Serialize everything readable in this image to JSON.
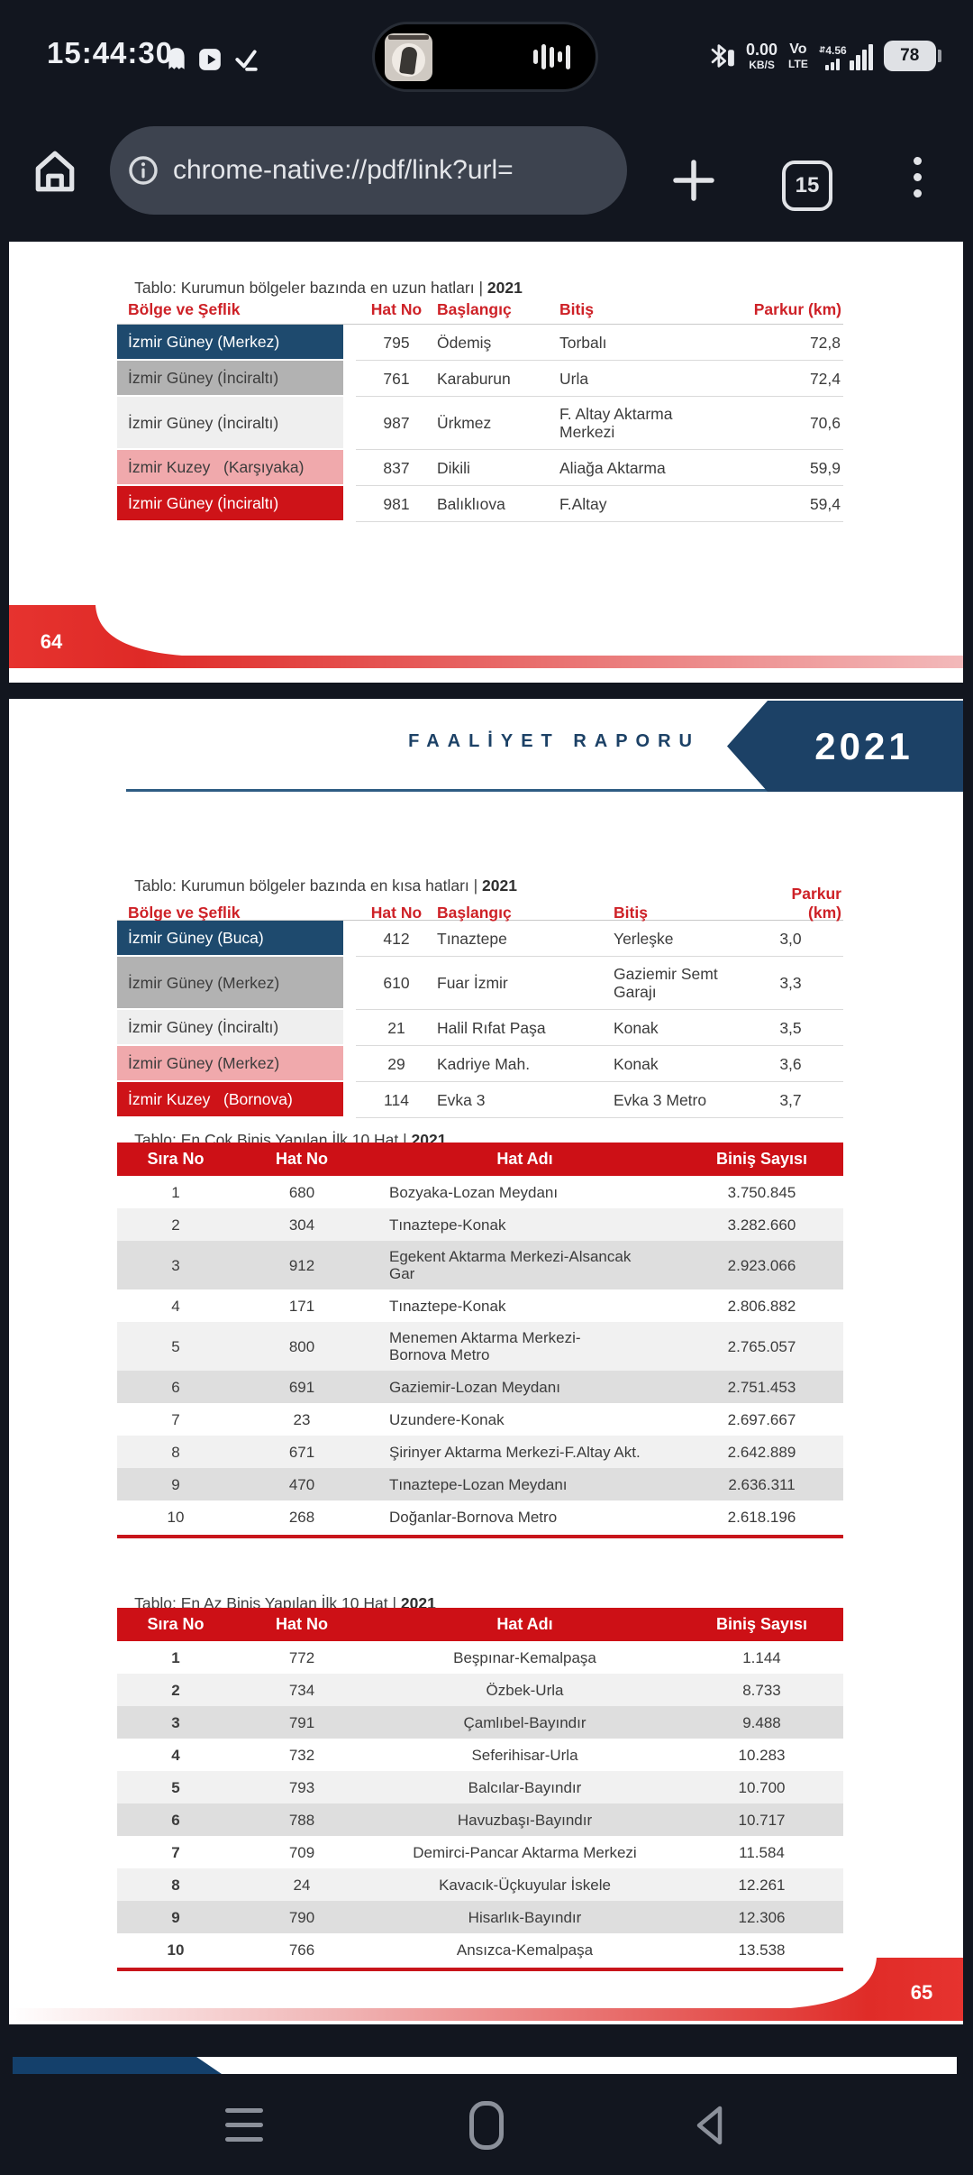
{
  "status_bar": {
    "time": "15:44:30",
    "net_speed_value": "0.00",
    "net_speed_unit": "KB/S",
    "volte_top": "Vo",
    "volte_bottom": "LTE",
    "signal_speed": "4.56",
    "battery_percent": "78"
  },
  "toolbar": {
    "url": "chrome-native://pdf/link?url=",
    "tab_count": "15"
  },
  "page_64": {
    "page_number": "64",
    "table_longest": {
      "title_prefix": "Tablo: Kurumun bölgeler bazında en uzun hatları | ",
      "title_year": "2021",
      "headers": [
        "Bölge ve Şeflik",
        "Hat No",
        "Başlangıç",
        "Bitiş",
        "Parkur (km)"
      ],
      "rows": [
        {
          "region": "İzmir Güney (Merkez)",
          "tone": "navy",
          "hat_no": "795",
          "start": "Ödemiş",
          "end": "Torbalı",
          "km": "72,8"
        },
        {
          "region": "İzmir Güney (İnciraltı)",
          "tone": "gray",
          "hat_no": "761",
          "start": "Karaburun",
          "end": "Urla",
          "km": "72,4"
        },
        {
          "region": "İzmir Güney (İnciraltı)",
          "tone": "light",
          "hat_no": "987",
          "start": "Ürkmez",
          "end": "F. Altay Aktarma\nMerkezi",
          "km": "70,6"
        },
        {
          "region": "İzmir Kuzey   (Karşıyaka)",
          "tone": "pink",
          "hat_no": "837",
          "start": "Dikili",
          "end": "Aliağa Aktarma",
          "km": "59,9"
        },
        {
          "region": "İzmir Güney (İnciraltı)",
          "tone": "red",
          "hat_no": "981",
          "start": "Balıklıova",
          "end": "F.Altay",
          "km": "59,4"
        }
      ]
    }
  },
  "page_65": {
    "page_number": "65",
    "header": {
      "report_title": "FAALİYET RAPORU",
      "year": "2021"
    },
    "table_shortest": {
      "title_prefix": "Tablo: Kurumun bölgeler bazında en kısa hatları | ",
      "title_year": "2021",
      "headers": [
        "Bölge ve Şeflik",
        "Hat No",
        "Başlangıç",
        "Bitiş",
        "Parkur (km)"
      ],
      "rows": [
        {
          "region": "İzmir Güney (Buca)",
          "tone": "navy",
          "hat_no": "412",
          "start": "Tınaztepe",
          "end": "Yerleşke",
          "km": "3,0"
        },
        {
          "region": "İzmir Güney (Merkez)",
          "tone": "gray",
          "hat_no": "610",
          "start": "Fuar İzmir",
          "end": "Gaziemir Semt\nGarajı",
          "km": "3,3"
        },
        {
          "region": "İzmir Güney (İnciraltı)",
          "tone": "light",
          "hat_no": "21",
          "start": "Halil Rıfat Paşa",
          "end": "Konak",
          "km": "3,5"
        },
        {
          "region": "İzmir Güney (Merkez)",
          "tone": "pink",
          "hat_no": "29",
          "start": "Kadriye Mah.",
          "end": "Konak",
          "km": "3,6"
        },
        {
          "region": "İzmir Kuzey   (Bornova)",
          "tone": "red",
          "hat_no": "114",
          "start": "Evka 3",
          "end": "Evka 3 Metro",
          "km": "3,7"
        }
      ]
    },
    "table_most_boardings": {
      "title_prefix": "Tablo: En Çok Biniş Yapılan İlk 10 Hat | ",
      "title_year": "2021",
      "headers": [
        "Sıra No",
        "Hat No",
        "Hat Adı",
        "Biniş Sayısı"
      ],
      "rows": [
        {
          "sira": "1",
          "hat_no": "680",
          "name": "Bozyaka-Lozan Meydanı",
          "count": "3.750.845"
        },
        {
          "sira": "2",
          "hat_no": "304",
          "name": "Tınaztepe-Konak",
          "count": "3.282.660"
        },
        {
          "sira": "3",
          "hat_no": "912",
          "name": "Egekent Aktarma Merkezi-Alsancak\nGar",
          "count": "2.923.066"
        },
        {
          "sira": "4",
          "hat_no": "171",
          "name": "Tınaztepe-Konak",
          "count": "2.806.882"
        },
        {
          "sira": "5",
          "hat_no": "800",
          "name": "Menemen Aktarma Merkezi-\nBornova Metro",
          "count": "2.765.057"
        },
        {
          "sira": "6",
          "hat_no": "691",
          "name": "Gaziemir-Lozan Meydanı",
          "count": "2.751.453"
        },
        {
          "sira": "7",
          "hat_no": "23",
          "name": "Uzundere-Konak",
          "count": "2.697.667"
        },
        {
          "sira": "8",
          "hat_no": "671",
          "name": "Şirinyer Aktarma Merkezi-F.Altay Akt.",
          "count": "2.642.889"
        },
        {
          "sira": "9",
          "hat_no": "470",
          "name": "Tınaztepe-Lozan Meydanı",
          "count": "2.636.311"
        },
        {
          "sira": "10",
          "hat_no": "268",
          "name": "Doğanlar-Bornova Metro",
          "count": "2.618.196"
        }
      ]
    },
    "table_least_boardings": {
      "title_prefix": "Tablo: En Az Biniş Yapılan İlk 10 Hat | ",
      "title_year": "2021",
      "headers": [
        "Sıra No",
        "Hat No",
        "Hat Adı",
        "Biniş Sayısı"
      ],
      "rows": [
        {
          "sira": "1",
          "hat_no": "772",
          "name": "Beşpınar-Kemalpaşa",
          "count": "1.144"
        },
        {
          "sira": "2",
          "hat_no": "734",
          "name": "Özbek-Urla",
          "count": "8.733"
        },
        {
          "sira": "3",
          "hat_no": "791",
          "name": "Çamlıbel-Bayındır",
          "count": "9.488"
        },
        {
          "sira": "4",
          "hat_no": "732",
          "name": "Seferihisar-Urla",
          "count": "10.283"
        },
        {
          "sira": "5",
          "hat_no": "793",
          "name": "Balcılar-Bayındır",
          "count": "10.700"
        },
        {
          "sira": "6",
          "hat_no": "788",
          "name": "Havuzbaşı-Bayındır",
          "count": "10.717"
        },
        {
          "sira": "7",
          "hat_no": "709",
          "name": "Demirci-Pancar Aktarma Merkezi",
          "count": "11.584"
        },
        {
          "sira": "8",
          "hat_no": "24",
          "name": "Kavacık-Üçkuyular İskele",
          "count": "12.261"
        },
        {
          "sira": "9",
          "hat_no": "790",
          "name": "Hisarlık-Bayındır",
          "count": "12.306"
        },
        {
          "sira": "10",
          "hat_no": "766",
          "name": "Ansızca-Kemalpaşa",
          "count": "13.538"
        }
      ]
    }
  },
  "colors": {
    "accent_red": "#cd1016",
    "accent_navy": "#1c4166",
    "row_navy": "#1e4a6e",
    "row_gray": "#b2b2b2",
    "row_pink": "#f0a9ac",
    "row_red": "#ce1318"
  }
}
